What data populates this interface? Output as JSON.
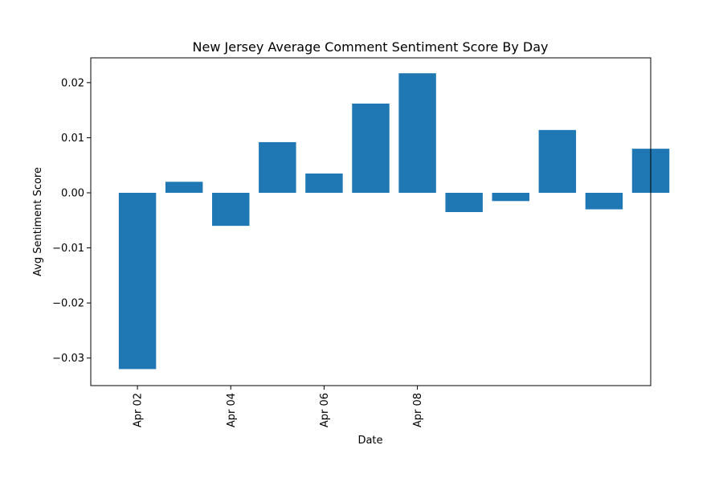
{
  "chart_data": {
    "type": "bar",
    "title": "New Jersey Average Comment Sentiment Score By Day",
    "xlabel": "Date",
    "ylabel": "Avg Sentiment Score",
    "grid": false,
    "legend": "none",
    "bar_color": "#1f77b4",
    "x": [
      "2024-04-02",
      "2024-04-03",
      "2024-04-04",
      "2024-04-05",
      "2024-04-06",
      "2024-04-07",
      "2024-04-08",
      "2024-04-09",
      "2024-04-10",
      "2024-04-11",
      "2024-04-12",
      "2024-04-13"
    ],
    "values": [
      -0.032,
      0.002,
      -0.006,
      0.0092,
      0.0035,
      0.0162,
      0.0217,
      -0.0035,
      -0.0015,
      0.0114,
      -0.003,
      0.008
    ],
    "xticks": [
      "2024-04-02",
      "2024-04-04",
      "2024-04-06",
      "2024-04-08"
    ],
    "xtick_labels": [
      "Apr 02",
      "Apr 04",
      "Apr 06",
      "Apr 08"
    ],
    "xlim": [
      "2024-04-01",
      "2024-04-13"
    ],
    "ylim": [
      -0.035,
      0.0245
    ],
    "yticks": [
      -0.03,
      -0.02,
      -0.01,
      0.0,
      0.01,
      0.02
    ],
    "ytick_labels": [
      "−0.03",
      "−0.02",
      "−0.01",
      "0.00",
      "0.01",
      "0.02"
    ]
  }
}
